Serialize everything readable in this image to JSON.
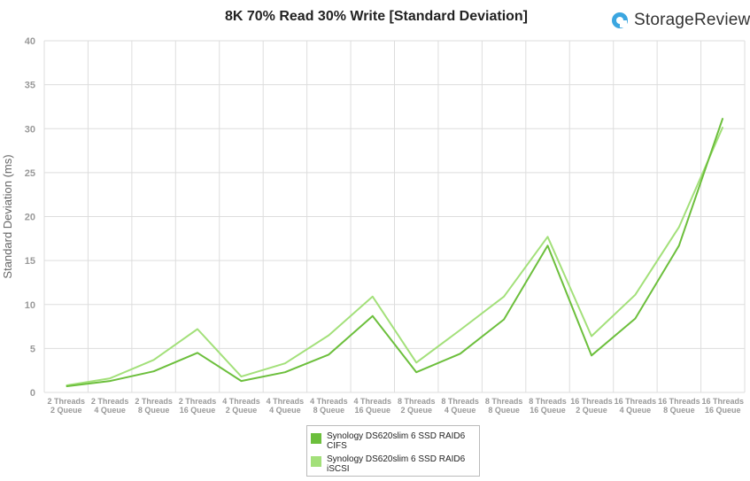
{
  "chart_data": {
    "type": "line",
    "title": "8K 70% Read 30% Write [Standard Deviation]",
    "ylabel": "Standard Deviation (ms)",
    "xlabel": "",
    "ylim": [
      0,
      40
    ],
    "yticks": [
      0,
      5,
      10,
      15,
      20,
      25,
      30,
      35,
      40
    ],
    "grid": true,
    "legend_placement": "bottom-center",
    "categories": [
      [
        "2 Threads",
        "2 Queue"
      ],
      [
        "2 Threads",
        "4 Queue"
      ],
      [
        "2 Threads",
        "8 Queue"
      ],
      [
        "2 Threads",
        "16 Queue"
      ],
      [
        "4 Threads",
        "2 Queue"
      ],
      [
        "4 Threads",
        "4 Queue"
      ],
      [
        "4 Threads",
        "8 Queue"
      ],
      [
        "4 Threads",
        "16 Queue"
      ],
      [
        "8 Threads",
        "2 Queue"
      ],
      [
        "8 Threads",
        "4 Queue"
      ],
      [
        "8 Threads",
        "8 Queue"
      ],
      [
        "8 Threads",
        "16 Queue"
      ],
      [
        "16 Threads",
        "2 Queue"
      ],
      [
        "16 Threads",
        "4 Queue"
      ],
      [
        "16 Threads",
        "8 Queue"
      ],
      [
        "16 Threads",
        "16 Queue"
      ]
    ],
    "series": [
      {
        "name": [
          "Synology DS620slim 6 SSD RAID6",
          "CIFS"
        ],
        "color": "#6cbf3c",
        "values": [
          0.7,
          1.3,
          2.4,
          4.5,
          1.3,
          2.3,
          4.3,
          8.7,
          2.3,
          4.4,
          8.3,
          16.7,
          4.2,
          8.4,
          16.7,
          31.2
        ]
      },
      {
        "name": [
          "Synology DS620slim 6 SSD RAID6",
          "iSCSI"
        ],
        "color": "#a3e07a",
        "values": [
          0.8,
          1.6,
          3.7,
          7.2,
          1.8,
          3.3,
          6.5,
          10.9,
          3.4,
          7.1,
          10.9,
          17.7,
          6.4,
          11.1,
          18.8,
          30.2
        ]
      }
    ]
  },
  "branding": {
    "logo_text": "StorageReview",
    "logo_color": "#3ba6e0"
  }
}
